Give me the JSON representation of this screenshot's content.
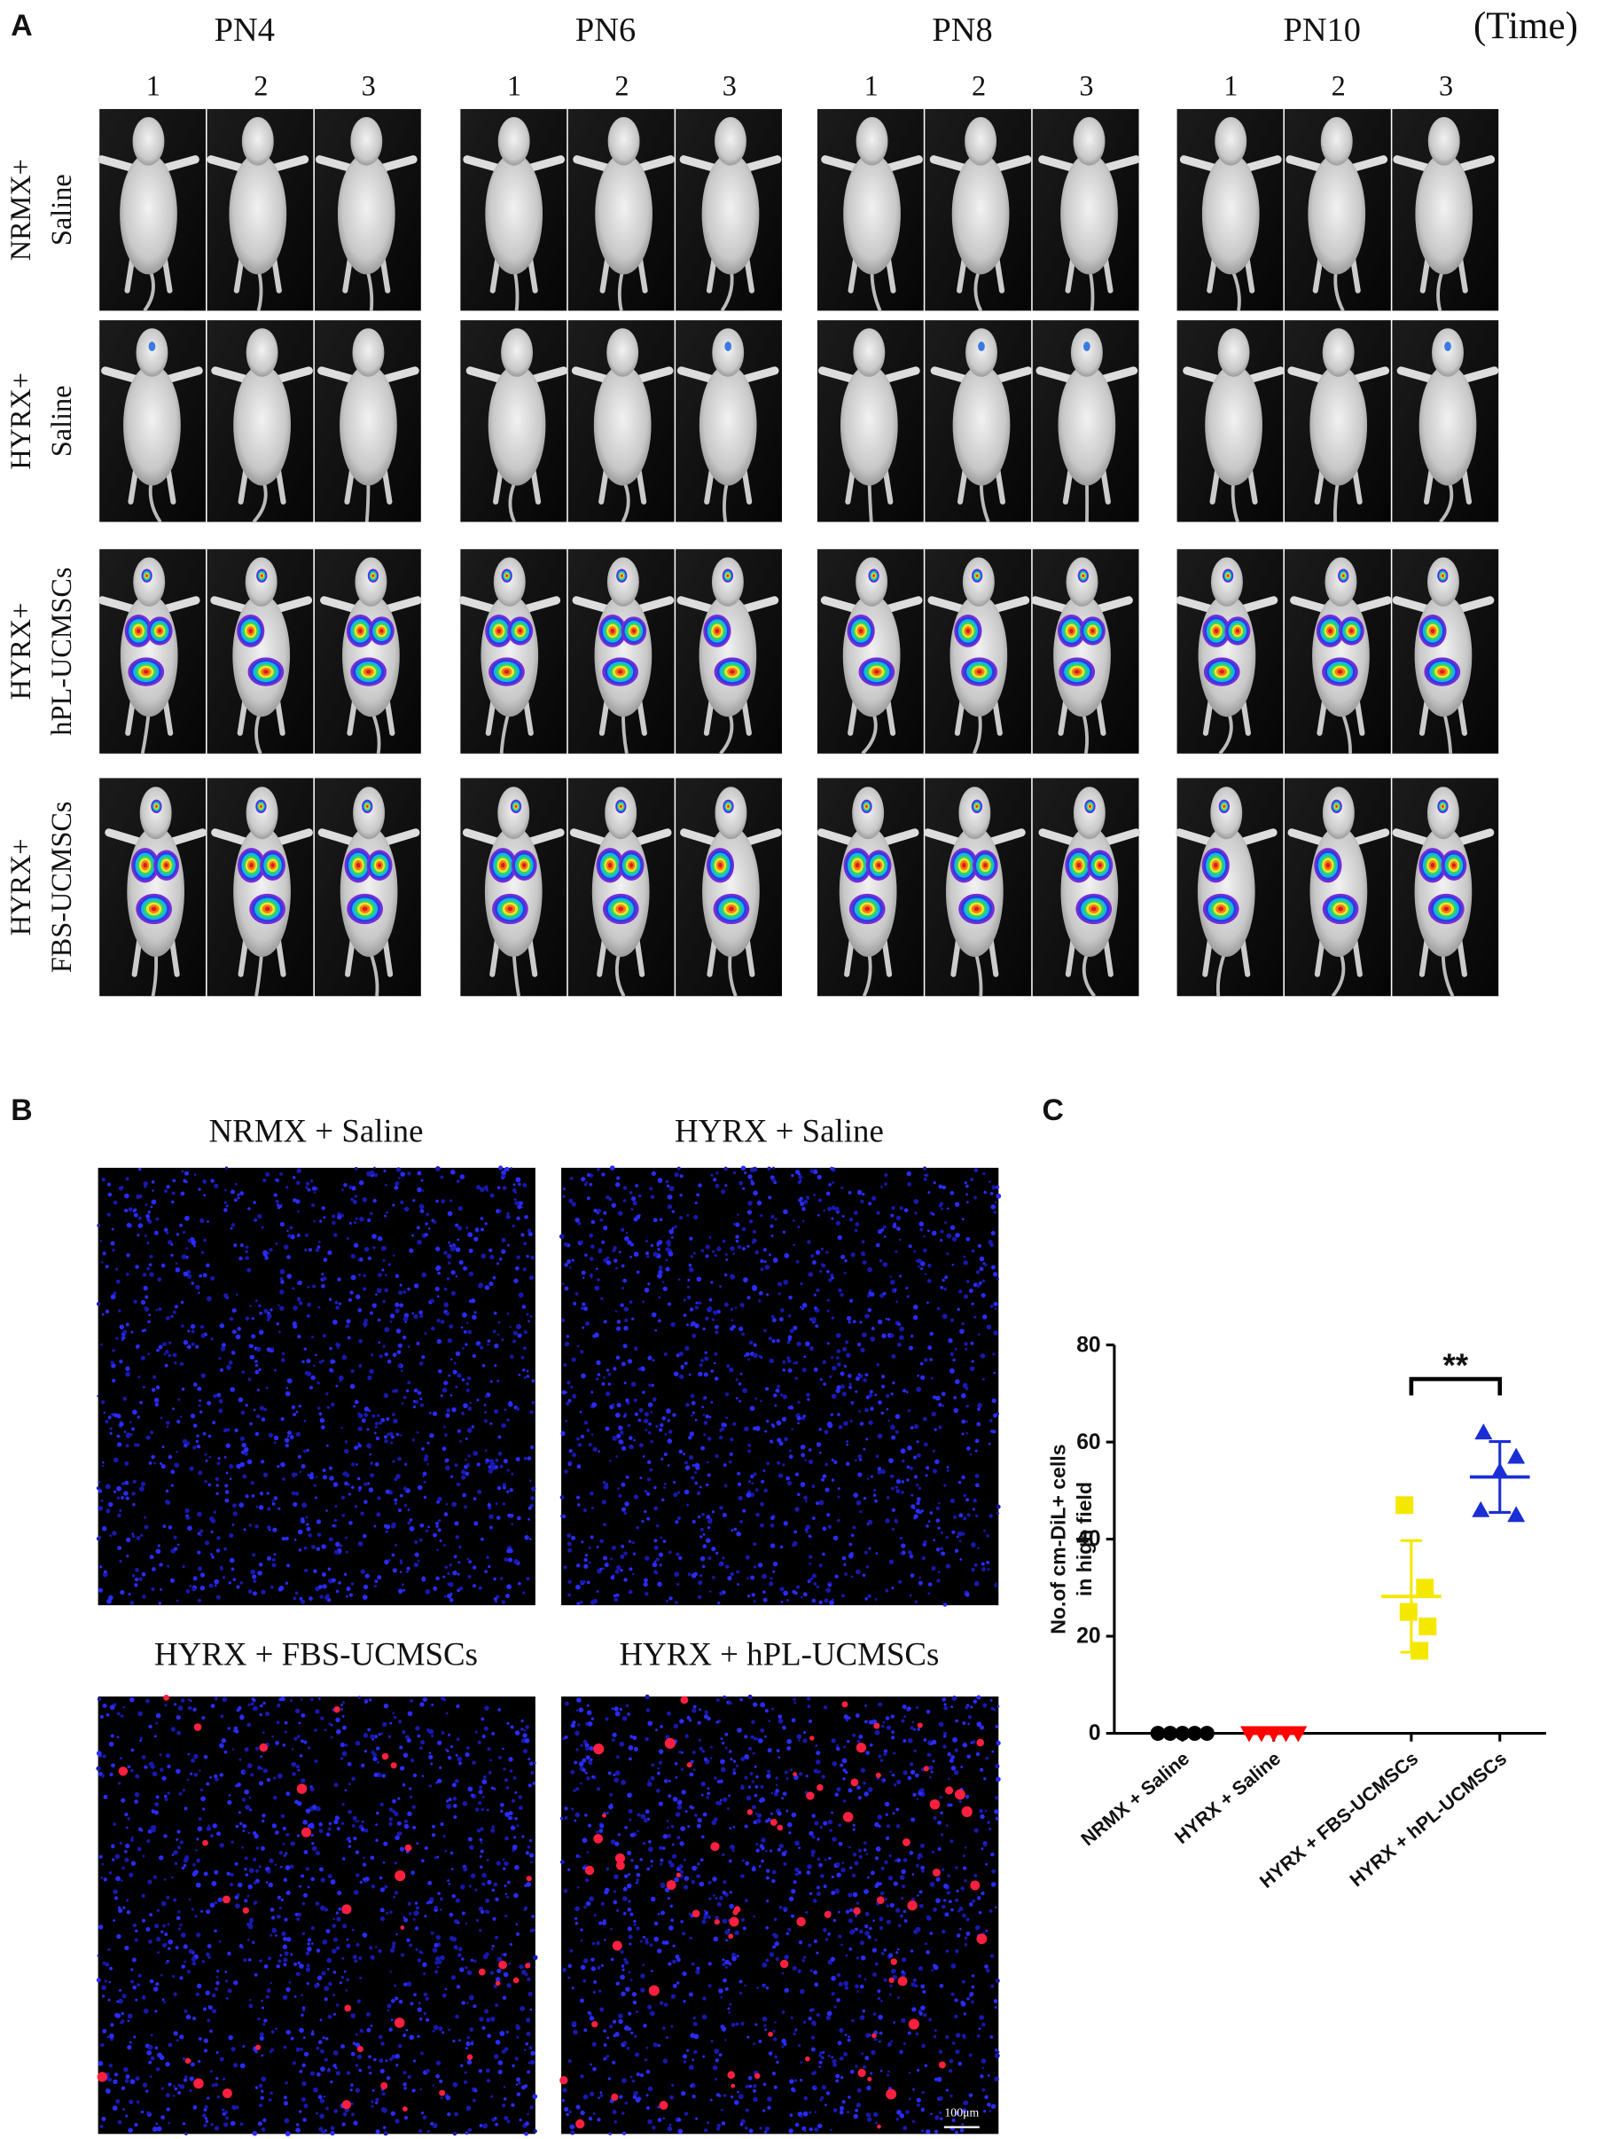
{
  "panel_a": {
    "label": "A",
    "time_label": "(Time)",
    "timepoints": [
      "PN4",
      "PN6",
      "PN8",
      "PN10"
    ],
    "replicate_labels": [
      "1",
      "2",
      "3"
    ],
    "groups": [
      {
        "line1": "NRMX+",
        "line2": "Saline"
      },
      {
        "line1": "HYRX+",
        "line2": "Saline"
      },
      {
        "line1": "HYRX+",
        "line2": "hPL-UCMSCs"
      },
      {
        "line1": "HYRX+",
        "line2": "FBS-UCMSCs"
      }
    ]
  },
  "panel_b": {
    "label": "B",
    "titles": [
      "NRMX + Saline",
      "HYRX + Saline",
      "HYRX + FBS-UCMSCs",
      "HYRX + hPL-UCMSCs"
    ],
    "scale_bar": "100μm"
  },
  "chart_data": {
    "type": "dotplot",
    "panel_label": "C",
    "ylabel": [
      "No.of cm-DiL+ cells",
      "in high field"
    ],
    "categories": [
      "NRMX + Saline",
      "HYRX + Saline",
      "HYRX + FBS-UCMSCs",
      "HYRX + hPL-UCMSCs"
    ],
    "values": [
      [
        0,
        0,
        0,
        0,
        0
      ],
      [
        0,
        0,
        0,
        0,
        0
      ],
      [
        47,
        30,
        25,
        22,
        17
      ],
      [
        62,
        57,
        54,
        46,
        45
      ]
    ],
    "means": [
      0,
      0,
      28.2,
      52.8
    ],
    "sd": [
      0,
      0,
      11.5,
      7.3
    ],
    "colors": [
      "#000000",
      "#ff0000",
      "#f5e800",
      "#1a2ed6"
    ],
    "markers": [
      "circle",
      "triangle-down",
      "square",
      "triangle-up"
    ],
    "ylim": [
      0,
      80
    ],
    "yticks": [
      0,
      20,
      40,
      60,
      80
    ],
    "annotation": "**"
  }
}
